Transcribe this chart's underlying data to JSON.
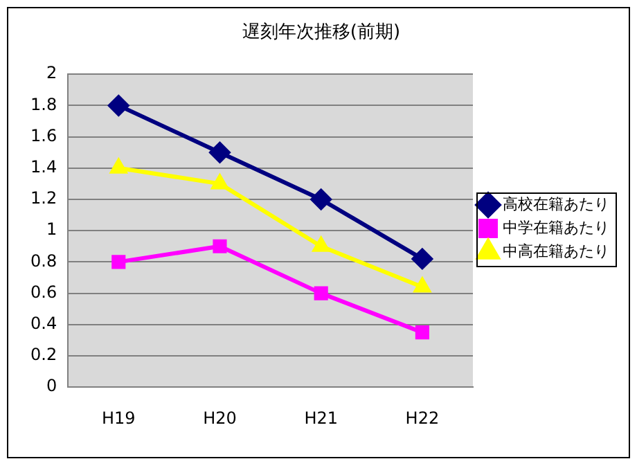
{
  "chart_data": {
    "type": "line",
    "title": "遅刻年次推移(前期)",
    "categories": [
      "H19",
      "H20",
      "H21",
      "H22"
    ],
    "series": [
      {
        "name": "高校在籍あたり",
        "color": "#000080",
        "values": [
          1.8,
          1.5,
          1.2,
          0.82
        ],
        "marker": "diamond"
      },
      {
        "name": "中学在籍あたり",
        "color": "#ff00ff",
        "values": [
          0.8,
          0.9,
          0.6,
          0.35
        ],
        "marker": "square"
      },
      {
        "name": "中高在籍あたり",
        "color": "#ffff00",
        "values": [
          1.4,
          1.3,
          0.9,
          0.64
        ],
        "marker": "triangle"
      }
    ],
    "ylim": [
      0,
      2
    ],
    "yticks": [
      0,
      0.2,
      0.4,
      0.6,
      0.8,
      1,
      1.2,
      1.4,
      1.6,
      1.8,
      2
    ],
    "grid": "y",
    "legend": "right"
  }
}
